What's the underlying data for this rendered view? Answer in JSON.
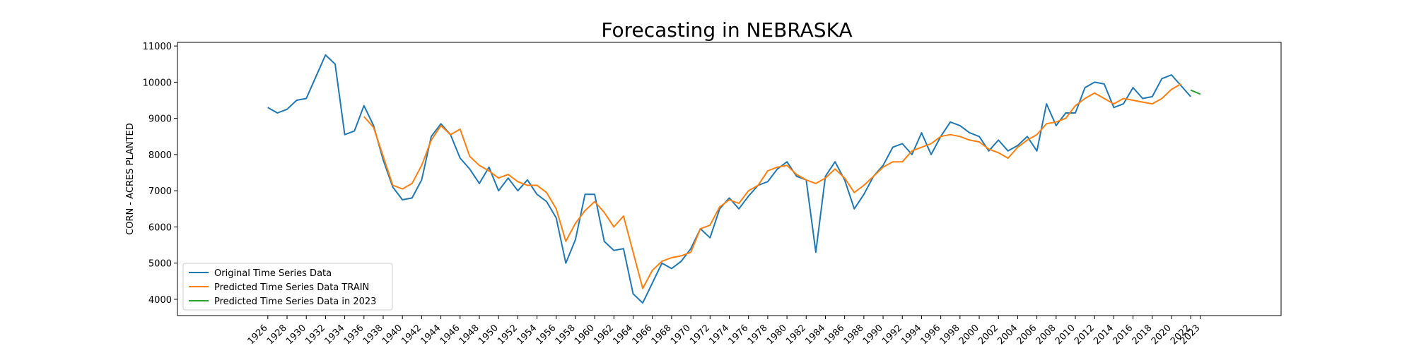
{
  "chart_data": {
    "type": "line",
    "title": "Forecasting in NEBRASKA",
    "xlabel": "",
    "ylabel": "CORN - ACRES PLANTED",
    "xlim": [
      1916.6,
      2031.4
    ],
    "ylim": [
      3550,
      11100
    ],
    "x_ticks": [
      1926,
      1928,
      1930,
      1932,
      1934,
      1936,
      1938,
      1940,
      1942,
      1944,
      1946,
      1948,
      1950,
      1952,
      1954,
      1956,
      1958,
      1960,
      1962,
      1964,
      1966,
      1968,
      1970,
      1972,
      1974,
      1976,
      1978,
      1980,
      1982,
      1984,
      1986,
      1988,
      1990,
      1992,
      1994,
      1996,
      1998,
      2000,
      2002,
      2004,
      2006,
      2008,
      2010,
      2012,
      2014,
      2016,
      2018,
      2020,
      2022,
      2023
    ],
    "y_ticks": [
      4000,
      5000,
      6000,
      7000,
      8000,
      9000,
      10000,
      11000
    ],
    "grid": false,
    "legend_position": "lower-left",
    "series": [
      {
        "name": "Original Time Series Data",
        "color": "#1f77b4",
        "points": [
          [
            1926,
            9300
          ],
          [
            1927,
            9150
          ],
          [
            1928,
            9250
          ],
          [
            1929,
            9500
          ],
          [
            1930,
            9550
          ],
          [
            1931,
            10150
          ],
          [
            1932,
            10750
          ],
          [
            1933,
            10500
          ],
          [
            1934,
            8550
          ],
          [
            1935,
            8650
          ],
          [
            1936,
            9350
          ],
          [
            1937,
            8800
          ],
          [
            1938,
            7850
          ],
          [
            1939,
            7100
          ],
          [
            1940,
            6750
          ],
          [
            1941,
            6800
          ],
          [
            1942,
            7300
          ],
          [
            1943,
            8500
          ],
          [
            1944,
            8850
          ],
          [
            1945,
            8550
          ],
          [
            1946,
            7900
          ],
          [
            1947,
            7600
          ],
          [
            1948,
            7200
          ],
          [
            1949,
            7650
          ],
          [
            1950,
            7000
          ],
          [
            1951,
            7350
          ],
          [
            1952,
            7000
          ],
          [
            1953,
            7300
          ],
          [
            1954,
            6900
          ],
          [
            1955,
            6700
          ],
          [
            1956,
            6250
          ],
          [
            1957,
            5000
          ],
          [
            1958,
            5650
          ],
          [
            1959,
            6900
          ],
          [
            1960,
            6900
          ],
          [
            1961,
            5600
          ],
          [
            1962,
            5350
          ],
          [
            1963,
            5400
          ],
          [
            1964,
            4150
          ],
          [
            1965,
            3900
          ],
          [
            1966,
            4450
          ],
          [
            1967,
            5000
          ],
          [
            1968,
            4850
          ],
          [
            1969,
            5050
          ],
          [
            1970,
            5400
          ],
          [
            1971,
            5950
          ],
          [
            1972,
            5700
          ],
          [
            1973,
            6500
          ],
          [
            1974,
            6800
          ],
          [
            1975,
            6500
          ],
          [
            1976,
            6850
          ],
          [
            1977,
            7150
          ],
          [
            1978,
            7250
          ],
          [
            1979,
            7600
          ],
          [
            1980,
            7800
          ],
          [
            1981,
            7400
          ],
          [
            1982,
            7300
          ],
          [
            1983,
            5300
          ],
          [
            1984,
            7400
          ],
          [
            1985,
            7800
          ],
          [
            1986,
            7300
          ],
          [
            1987,
            6500
          ],
          [
            1988,
            6900
          ],
          [
            1989,
            7400
          ],
          [
            1990,
            7700
          ],
          [
            1991,
            8200
          ],
          [
            1992,
            8300
          ],
          [
            1993,
            8000
          ],
          [
            1994,
            8600
          ],
          [
            1995,
            8000
          ],
          [
            1996,
            8500
          ],
          [
            1997,
            8900
          ],
          [
            1998,
            8800
          ],
          [
            1999,
            8600
          ],
          [
            2000,
            8500
          ],
          [
            2001,
            8100
          ],
          [
            2002,
            8400
          ],
          [
            2003,
            8100
          ],
          [
            2004,
            8250
          ],
          [
            2005,
            8500
          ],
          [
            2006,
            8100
          ],
          [
            2007,
            9400
          ],
          [
            2008,
            8800
          ],
          [
            2009,
            9150
          ],
          [
            2010,
            9150
          ],
          [
            2011,
            9850
          ],
          [
            2012,
            10000
          ],
          [
            2013,
            9950
          ],
          [
            2014,
            9300
          ],
          [
            2015,
            9400
          ],
          [
            2016,
            9850
          ],
          [
            2017,
            9550
          ],
          [
            2018,
            9600
          ],
          [
            2019,
            10100
          ],
          [
            2020,
            10200
          ],
          [
            2021,
            9900
          ],
          [
            2022,
            9600
          ]
        ]
      },
      {
        "name": "Predicted Time Series Data TRAIN",
        "color": "#ff7f0e",
        "points": [
          [
            1936,
            9050
          ],
          [
            1937,
            8750
          ],
          [
            1938,
            7950
          ],
          [
            1939,
            7150
          ],
          [
            1940,
            7050
          ],
          [
            1941,
            7200
          ],
          [
            1942,
            7700
          ],
          [
            1943,
            8400
          ],
          [
            1944,
            8800
          ],
          [
            1945,
            8550
          ],
          [
            1946,
            8700
          ],
          [
            1947,
            7950
          ],
          [
            1948,
            7700
          ],
          [
            1949,
            7550
          ],
          [
            1950,
            7350
          ],
          [
            1951,
            7450
          ],
          [
            1952,
            7250
          ],
          [
            1953,
            7150
          ],
          [
            1954,
            7150
          ],
          [
            1955,
            6950
          ],
          [
            1956,
            6500
          ],
          [
            1957,
            5600
          ],
          [
            1958,
            6100
          ],
          [
            1959,
            6450
          ],
          [
            1960,
            6700
          ],
          [
            1961,
            6400
          ],
          [
            1962,
            6000
          ],
          [
            1963,
            6300
          ],
          [
            1964,
            5300
          ],
          [
            1965,
            4300
          ],
          [
            1966,
            4800
          ],
          [
            1967,
            5050
          ],
          [
            1968,
            5150
          ],
          [
            1969,
            5200
          ],
          [
            1970,
            5300
          ],
          [
            1971,
            5950
          ],
          [
            1972,
            6050
          ],
          [
            1973,
            6550
          ],
          [
            1974,
            6750
          ],
          [
            1975,
            6650
          ],
          [
            1976,
            7000
          ],
          [
            1977,
            7150
          ],
          [
            1978,
            7550
          ],
          [
            1979,
            7650
          ],
          [
            1980,
            7700
          ],
          [
            1981,
            7450
          ],
          [
            1982,
            7300
          ],
          [
            1983,
            7200
          ],
          [
            1984,
            7350
          ],
          [
            1985,
            7600
          ],
          [
            1986,
            7350
          ],
          [
            1987,
            6950
          ],
          [
            1988,
            7150
          ],
          [
            1989,
            7400
          ],
          [
            1990,
            7650
          ],
          [
            1991,
            7800
          ],
          [
            1992,
            7800
          ],
          [
            1993,
            8100
          ],
          [
            1994,
            8200
          ],
          [
            1995,
            8300
          ],
          [
            1996,
            8500
          ],
          [
            1997,
            8550
          ],
          [
            1998,
            8500
          ],
          [
            1999,
            8400
          ],
          [
            2000,
            8350
          ],
          [
            2001,
            8150
          ],
          [
            2002,
            8050
          ],
          [
            2003,
            7900
          ],
          [
            2004,
            8200
          ],
          [
            2005,
            8400
          ],
          [
            2006,
            8550
          ],
          [
            2007,
            8850
          ],
          [
            2008,
            8900
          ],
          [
            2009,
            9000
          ],
          [
            2010,
            9350
          ],
          [
            2011,
            9550
          ],
          [
            2012,
            9700
          ],
          [
            2013,
            9550
          ],
          [
            2014,
            9400
          ],
          [
            2015,
            9550
          ],
          [
            2016,
            9500
          ],
          [
            2017,
            9450
          ],
          [
            2018,
            9400
          ],
          [
            2019,
            9550
          ],
          [
            2020,
            9800
          ],
          [
            2021,
            9950
          ]
        ]
      },
      {
        "name": "Predicted Time Series Data in 2023",
        "color": "#2ca02c",
        "points": [
          [
            2022,
            9780
          ],
          [
            2023,
            9670
          ]
        ]
      }
    ]
  }
}
